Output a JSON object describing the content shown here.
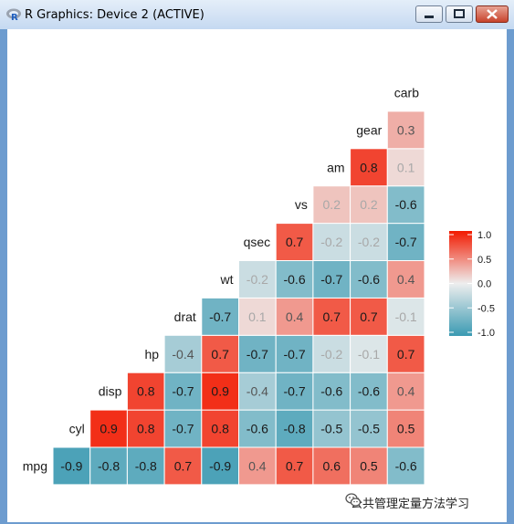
{
  "window": {
    "title": "R Graphics: Device 2 (ACTIVE)",
    "icon": "r-logo-icon",
    "controls": [
      "minimize-icon",
      "maximize-icon",
      "close-icon"
    ]
  },
  "chart_data": {
    "type": "heatmap",
    "subtype": "lower-triangle correlation matrix (ggcorr)",
    "variables": [
      "mpg",
      "cyl",
      "disp",
      "hp",
      "drat",
      "wt",
      "qsec",
      "vs",
      "am",
      "gear",
      "carb"
    ],
    "rows": [
      {
        "var": "mpg",
        "values": [
          -0.9,
          -0.8,
          -0.8,
          0.7,
          -0.9,
          0.4,
          0.7,
          0.6,
          0.5,
          -0.6
        ]
      },
      {
        "var": "cyl",
        "values": [
          0.9,
          0.8,
          -0.7,
          0.8,
          -0.6,
          -0.8,
          -0.5,
          -0.5,
          0.5
        ]
      },
      {
        "var": "disp",
        "values": [
          0.8,
          -0.7,
          0.9,
          -0.4,
          -0.7,
          -0.6,
          -0.6,
          0.4
        ]
      },
      {
        "var": "hp",
        "values": [
          -0.4,
          0.7,
          -0.7,
          -0.7,
          -0.2,
          -0.1,
          0.7
        ]
      },
      {
        "var": "drat",
        "values": [
          -0.7,
          0.1,
          0.4,
          0.7,
          0.7,
          -0.1
        ]
      },
      {
        "var": "wt",
        "values": [
          -0.2,
          -0.6,
          -0.7,
          -0.6,
          0.4
        ]
      },
      {
        "var": "qsec",
        "values": [
          0.7,
          -0.2,
          -0.2,
          -0.7
        ]
      },
      {
        "var": "vs",
        "values": [
          0.2,
          0.2,
          -0.6
        ]
      },
      {
        "var": "am",
        "values": [
          0.8,
          0.1
        ]
      },
      {
        "var": "gear",
        "values": [
          0.3
        ]
      }
    ],
    "legend": {
      "ticks": [
        "1.0",
        "0.5",
        "0.0",
        "-0.5",
        "-1.0"
      ],
      "tick_values": [
        1.0,
        0.5,
        0.0,
        -0.5,
        -1.0
      ],
      "limits": [
        -1,
        1
      ],
      "placement": "right"
    },
    "colors": {
      "low": "#3a9ab2",
      "mid": "#eeeeee",
      "high": "#f21a00"
    },
    "grid": false
  },
  "watermark": {
    "text": "公共管理定量方法学习",
    "icon": "wechat-icon"
  }
}
